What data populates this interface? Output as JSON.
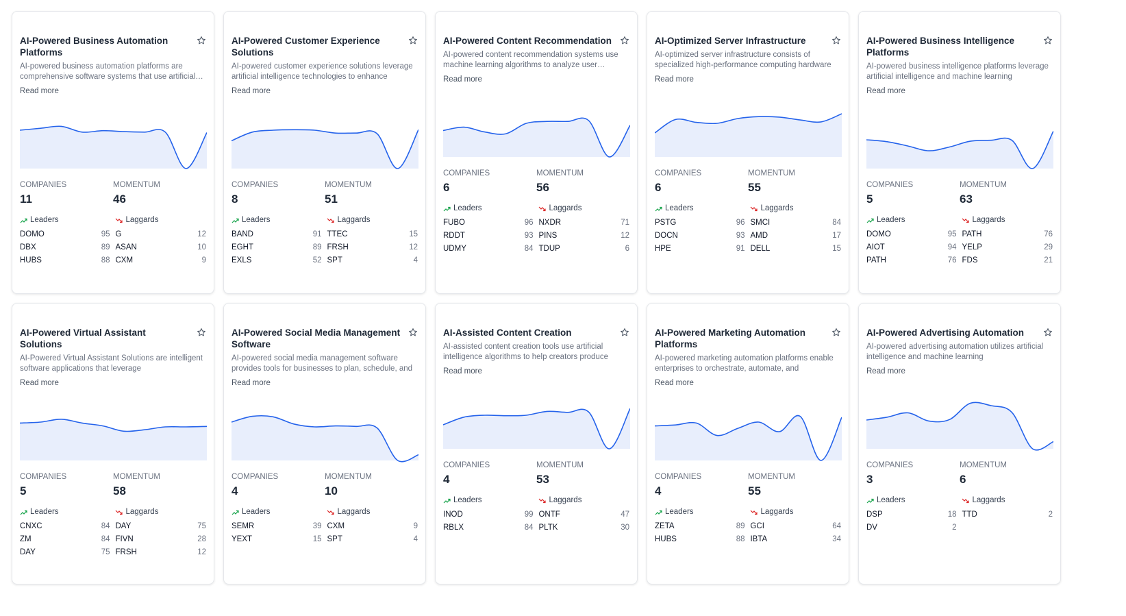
{
  "labels": {
    "read_more": "Read more",
    "companies": "COMPANIES",
    "momentum": "MOMENTUM",
    "leaders": "Leaders",
    "laggards": "Laggards"
  },
  "colors": {
    "line": "#2563eb",
    "area": "#e8eefc",
    "up": "#16a34a",
    "down": "#dc2626"
  },
  "cards": [
    {
      "title": "AI-Powered Business Automation Platforms",
      "description": "AI-powered business automation platforms are comprehensive software systems that use artificial intelligence",
      "companies": "11",
      "momentum": "46",
      "trend": [
        0.8,
        0.84,
        0.88,
        0.76,
        0.79,
        0.77,
        0.76,
        0.76,
        0.0,
        0.75
      ],
      "leaders": [
        {
          "ticker": "DOMO",
          "score": "95"
        },
        {
          "ticker": "DBX",
          "score": "89"
        },
        {
          "ticker": "HUBS",
          "score": "88"
        }
      ],
      "laggards": [
        {
          "ticker": "G",
          "score": "12"
        },
        {
          "ticker": "ASAN",
          "score": "10"
        },
        {
          "ticker": "CXM",
          "score": "9"
        }
      ]
    },
    {
      "title": "AI-Powered Customer Experience Solutions",
      "description": "AI-powered customer experience solutions leverage artificial intelligence technologies to enhance",
      "companies": "8",
      "momentum": "51",
      "trend": [
        0.58,
        0.76,
        0.8,
        0.81,
        0.8,
        0.74,
        0.74,
        0.73,
        0.0,
        0.81
      ],
      "leaders": [
        {
          "ticker": "BAND",
          "score": "91"
        },
        {
          "ticker": "EGHT",
          "score": "89"
        },
        {
          "ticker": "EXLS",
          "score": "52"
        }
      ],
      "laggards": [
        {
          "ticker": "TTEC",
          "score": "15"
        },
        {
          "ticker": "FRSH",
          "score": "12"
        },
        {
          "ticker": "SPT",
          "score": "4"
        }
      ]
    },
    {
      "title": "AI-Powered Content Recommendation",
      "description": "AI-powered content recommendation systems use machine learning algorithms to analyze user behavior",
      "companies": "6",
      "momentum": "56",
      "trend": [
        0.55,
        0.62,
        0.52,
        0.48,
        0.7,
        0.74,
        0.74,
        0.76,
        0.0,
        0.66
      ],
      "leaders": [
        {
          "ticker": "FUBO",
          "score": "96"
        },
        {
          "ticker": "RDDT",
          "score": "93"
        },
        {
          "ticker": "UDMY",
          "score": "84"
        }
      ],
      "laggards": [
        {
          "ticker": "NXDR",
          "score": "71"
        },
        {
          "ticker": "PINS",
          "score": "12"
        },
        {
          "ticker": "TDUP",
          "score": "6"
        }
      ]
    },
    {
      "title": "AI-Optimized Server Infrastructure",
      "description": "AI-optimized server infrastructure consists of specialized high-performance computing hardware",
      "companies": "6",
      "momentum": "55",
      "trend": [
        0.5,
        0.78,
        0.72,
        0.7,
        0.8,
        0.84,
        0.83,
        0.77,
        0.73,
        0.9
      ],
      "leaders": [
        {
          "ticker": "PSTG",
          "score": "96"
        },
        {
          "ticker": "DOCN",
          "score": "93"
        },
        {
          "ticker": "HPE",
          "score": "91"
        }
      ],
      "laggards": [
        {
          "ticker": "SMCI",
          "score": "84"
        },
        {
          "ticker": "AMD",
          "score": "17"
        },
        {
          "ticker": "DELL",
          "score": "15"
        }
      ]
    },
    {
      "title": "AI-Powered Business Intelligence Platforms",
      "description": "AI-powered business intelligence platforms leverage artificial intelligence and machine learning",
      "companies": "5",
      "momentum": "63",
      "trend": [
        0.6,
        0.56,
        0.47,
        0.37,
        0.45,
        0.57,
        0.59,
        0.59,
        0.0,
        0.78
      ],
      "leaders": [
        {
          "ticker": "DOMO",
          "score": "95"
        },
        {
          "ticker": "AIOT",
          "score": "94"
        },
        {
          "ticker": "PATH",
          "score": "76"
        }
      ],
      "laggards": [
        {
          "ticker": "PATH",
          "score": "76"
        },
        {
          "ticker": "YELP",
          "score": "29"
        },
        {
          "ticker": "FDS",
          "score": "21"
        }
      ]
    },
    {
      "title": "AI-Powered Virtual Assistant Solutions",
      "description": "AI-Powered Virtual Assistant Solutions are intelligent software applications that leverage",
      "companies": "5",
      "momentum": "58",
      "trend": [
        0.78,
        0.8,
        0.86,
        0.78,
        0.72,
        0.61,
        0.64,
        0.7,
        0.7,
        0.71
      ],
      "leaders": [
        {
          "ticker": "CNXC",
          "score": "84"
        },
        {
          "ticker": "ZM",
          "score": "84"
        },
        {
          "ticker": "DAY",
          "score": "75"
        }
      ],
      "laggards": [
        {
          "ticker": "DAY",
          "score": "75"
        },
        {
          "ticker": "FIVN",
          "score": "28"
        },
        {
          "ticker": "FRSH",
          "score": "12"
        }
      ]
    },
    {
      "title": "AI-Powered Social Media Management Software",
      "description": "AI-powered social media management software provides tools for businesses to plan, schedule, and",
      "companies": "4",
      "momentum": "10",
      "trend": [
        0.8,
        0.92,
        0.91,
        0.76,
        0.7,
        0.72,
        0.71,
        0.68,
        0.0,
        0.12
      ],
      "leaders": [
        {
          "ticker": "SEMR",
          "score": "39"
        },
        {
          "ticker": "YEXT",
          "score": "15"
        }
      ],
      "laggards": [
        {
          "ticker": "CXM",
          "score": "9"
        },
        {
          "ticker": "SPT",
          "score": "4"
        }
      ]
    },
    {
      "title": "AI-Assisted Content Creation",
      "description": "AI-assisted content creation tools use artificial intelligence algorithms to help creators produce",
      "companies": "4",
      "momentum": "53",
      "trend": [
        0.5,
        0.66,
        0.7,
        0.69,
        0.7,
        0.78,
        0.76,
        0.77,
        0.0,
        0.84
      ],
      "leaders": [
        {
          "ticker": "INOD",
          "score": "99"
        },
        {
          "ticker": "RBLX",
          "score": "84"
        }
      ],
      "laggards": [
        {
          "ticker": "ONTF",
          "score": "47"
        },
        {
          "ticker": "PLTK",
          "score": "30"
        }
      ]
    },
    {
      "title": "AI-Powered Marketing Automation Platforms",
      "description": "AI-powered marketing automation platforms enable enterprises to orchestrate, automate, and",
      "companies": "4",
      "momentum": "55",
      "trend": [
        0.72,
        0.74,
        0.78,
        0.52,
        0.67,
        0.8,
        0.6,
        0.92,
        0.0,
        0.9
      ],
      "leaders": [
        {
          "ticker": "ZETA",
          "score": "89"
        },
        {
          "ticker": "HUBS",
          "score": "88"
        }
      ],
      "laggards": [
        {
          "ticker": "GCI",
          "score": "64"
        },
        {
          "ticker": "IBTA",
          "score": "34"
        }
      ]
    },
    {
      "title": "AI-Powered Advertising Automation",
      "description": "AI-powered advertising automation utilizes artificial intelligence and machine learning",
      "companies": "3",
      "momentum": "6",
      "trend": [
        0.6,
        0.66,
        0.75,
        0.58,
        0.61,
        0.95,
        0.9,
        0.76,
        0.0,
        0.15
      ],
      "leaders": [
        {
          "ticker": "DSP",
          "score": "18"
        },
        {
          "ticker": "DV",
          "score": "2"
        }
      ],
      "laggards": [
        {
          "ticker": "TTD",
          "score": "2"
        }
      ]
    }
  ]
}
